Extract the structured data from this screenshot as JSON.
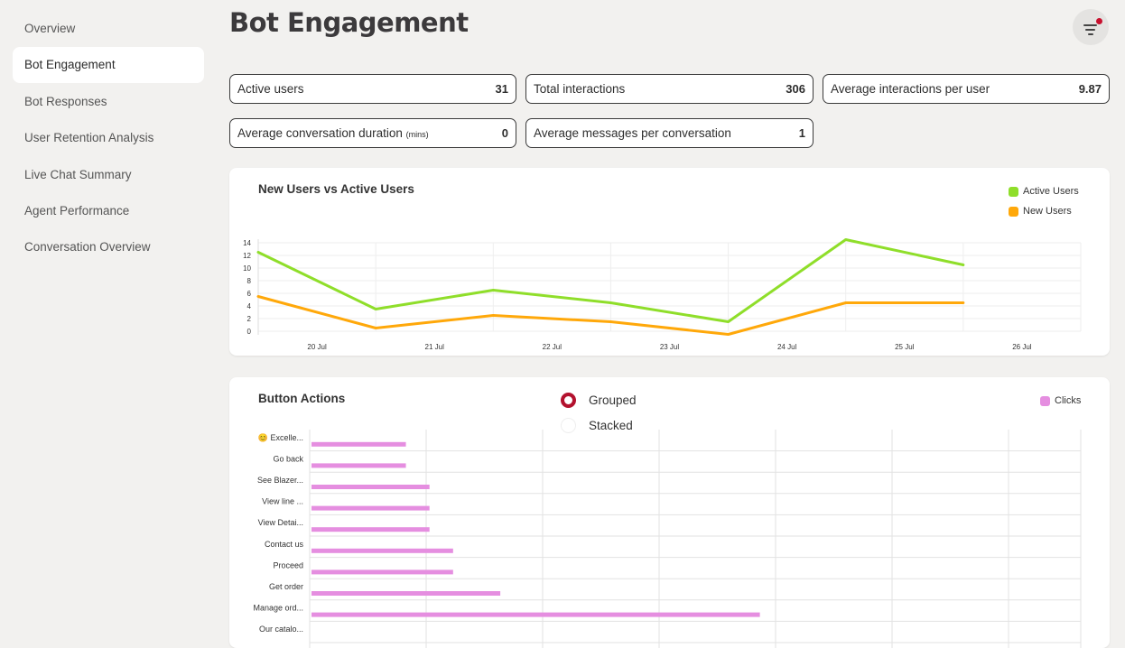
{
  "sidebar": {
    "items": [
      {
        "label": "Overview",
        "active": false
      },
      {
        "label": "Bot Engagement",
        "active": true
      },
      {
        "label": "Bot Responses",
        "active": false
      },
      {
        "label": "User Retention Analysis",
        "active": false
      },
      {
        "label": "Live Chat Summary",
        "active": false
      },
      {
        "label": "Agent Performance",
        "active": false
      },
      {
        "label": "Conversation Overview",
        "active": false
      }
    ]
  },
  "header": {
    "title": "Bot Engagement",
    "filter_icon": "filter-icon",
    "filter_badge_color": "#c8102e"
  },
  "stats": [
    {
      "label": "Active users",
      "unit": "",
      "value": "31"
    },
    {
      "label": "Total interactions",
      "unit": "",
      "value": "306"
    },
    {
      "label": "Average interactions per user",
      "unit": "",
      "value": "9.87"
    },
    {
      "label": "Average conversation duration",
      "unit": "(mins)",
      "value": "0"
    },
    {
      "label": "Average messages per conversation",
      "unit": "",
      "value": "1"
    }
  ],
  "users_chart": {
    "title": "New Users vs Active Users"
  },
  "buttons_chart": {
    "title": "Button Actions",
    "mode_options": [
      {
        "label": "Grouped",
        "selected": true
      },
      {
        "label": "Stacked",
        "selected": false
      }
    ]
  },
  "chart_data": [
    {
      "type": "line",
      "title": "New Users vs Active Users",
      "x": [
        "20 Jul",
        "21 Jul",
        "22 Jul",
        "23 Jul",
        "24 Jul",
        "25 Jul",
        "26 Jul"
      ],
      "x_points": [
        "19 Jul",
        "20 Jul",
        "21 Jul",
        "22 Jul",
        "23 Jul",
        "24 Jul",
        "25 Jul"
      ],
      "series": [
        {
          "name": "Active Users",
          "color": "#8fde2a",
          "values": [
            12.5,
            3.5,
            6.5,
            4.5,
            1.5,
            14.5,
            10.5
          ]
        },
        {
          "name": "New Users",
          "color": "#ffa80a",
          "values": [
            5.5,
            0.5,
            2.5,
            1.5,
            -0.5,
            4.5,
            4.5
          ]
        }
      ],
      "yticks": [
        0,
        2,
        4,
        6,
        8,
        10,
        12,
        14
      ],
      "ylim": [
        0,
        14
      ],
      "legend": "top-right",
      "grid": true
    },
    {
      "type": "bar",
      "orientation": "horizontal",
      "title": "Button Actions",
      "categories": [
        "😊 Excelle...",
        "Go back",
        "See Blazer...",
        "View line ...",
        "View Detai...",
        "Contact us",
        "Proceed",
        "Get order",
        "Manage ord...",
        "Our catalo..."
      ],
      "series": [
        {
          "name": "Clicks",
          "color": "#e58ee0",
          "values": [
            4,
            4,
            5,
            5,
            5,
            6,
            6,
            8,
            19,
            0
          ]
        }
      ],
      "xlim": [
        0,
        33
      ],
      "legend": "top-right",
      "grid": true
    }
  ]
}
